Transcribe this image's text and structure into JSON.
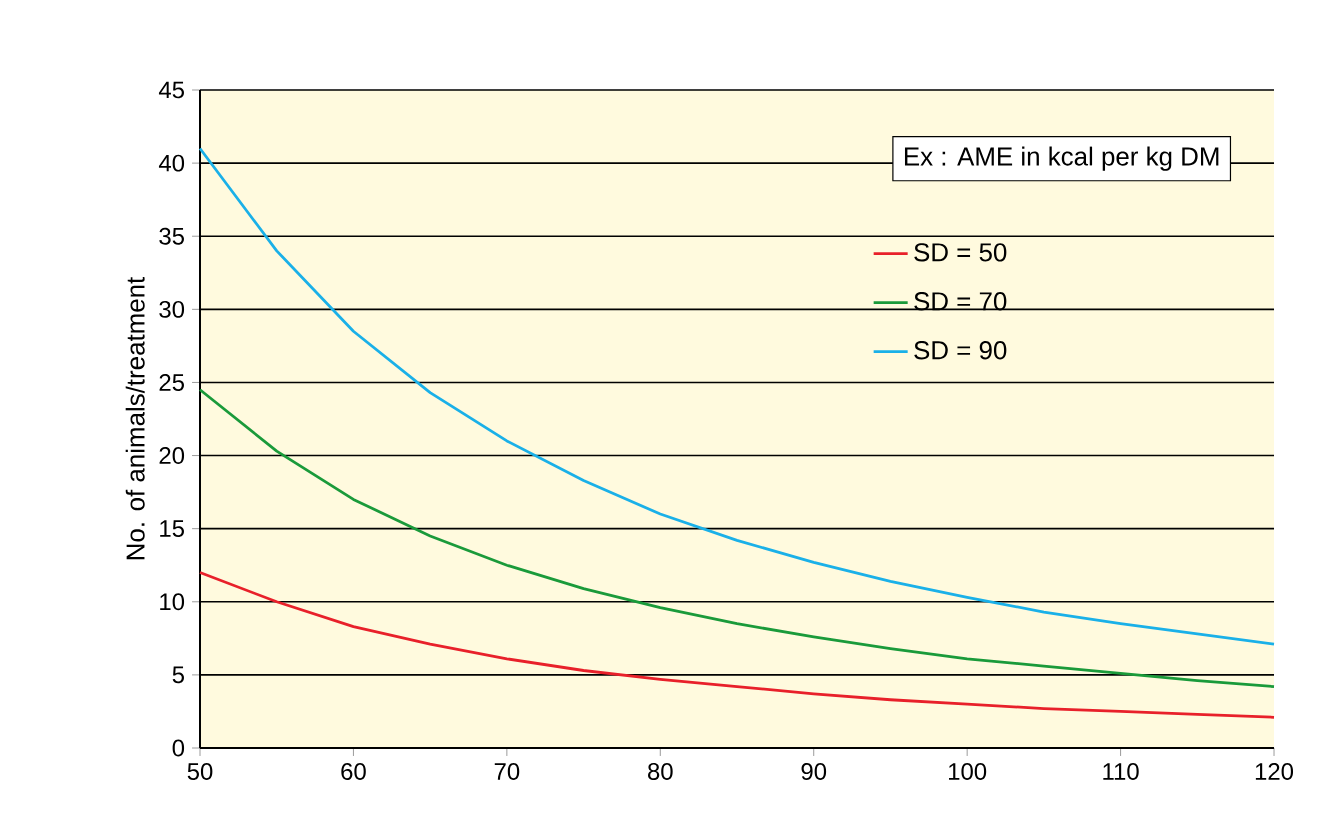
{
  "chart_data": {
    "type": "line",
    "ylabel": "No. of animals/treatment",
    "annotations": [
      "Ex : AME in kcal per kg DM"
    ],
    "x": [
      50,
      55,
      60,
      65,
      70,
      75,
      80,
      85,
      90,
      95,
      100,
      105,
      110,
      115,
      120
    ],
    "series": [
      {
        "name": "SD = 50",
        "color": "#e8202a",
        "values": [
          12,
          10,
          8.3,
          7.1,
          6.1,
          5.3,
          4.7,
          4.2,
          3.7,
          3.3,
          3,
          2.7,
          2.5,
          2.3,
          2.1
        ]
      },
      {
        "name": "SD = 70",
        "color": "#1a9a3a",
        "values": [
          24.5,
          20.3,
          17,
          14.5,
          12.5,
          10.9,
          9.6,
          8.5,
          7.6,
          6.8,
          6.1,
          5.6,
          5.1,
          4.6,
          4.2
        ]
      },
      {
        "name": "SD = 90",
        "color": "#1ab0e8",
        "values": [
          41,
          34,
          28.5,
          24.3,
          21,
          18.3,
          16,
          14.2,
          12.7,
          11.4,
          10.3,
          9.3,
          8.5,
          7.8,
          7.1
        ]
      }
    ],
    "xlim": [
      50,
      120
    ],
    "ylim": [
      0,
      45
    ],
    "xticks": [
      50,
      60,
      70,
      80,
      90,
      100,
      110,
      120
    ],
    "yticks": [
      0,
      5,
      10,
      15,
      20,
      25,
      30,
      35,
      40,
      45
    ],
    "grid": "y",
    "legend": "right",
    "marker": "none",
    "line_style": "solid"
  }
}
